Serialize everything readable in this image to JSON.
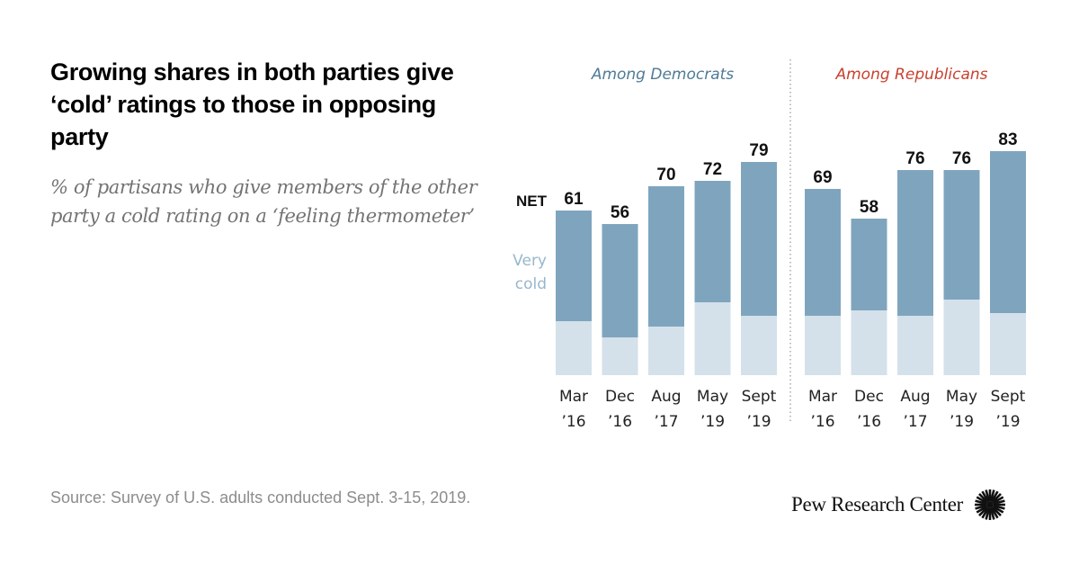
{
  "title": "Growing shares in both parties give ‘cold’ ratings to those in opposing party",
  "subtitle": "% of partisans who give members of the other party a cold rating on a ‘feeling thermometer’",
  "source": "Source: Survey of U.S. adults conducted Sept. 3-15, 2019.",
  "logo": {
    "text": "Pew Research Center",
    "icon": "pew-sunburst-icon"
  },
  "colors": {
    "net_bar": "#7FA5BE",
    "very_cold_bar": "#D4E1EA",
    "democrats_title": "#4F7A96",
    "republicans_title": "#C8412E",
    "very_cold_label": "#97B7CC",
    "divider": "#AAAAAA"
  },
  "chart_data": {
    "type": "bar",
    "title": "Growing shares in both parties give ‘cold’ ratings to those in opposing party",
    "subtitle": "% of partisans who give members of the other party a cold rating on a ‘feeling thermometer’",
    "xlabel": "",
    "ylabel": "",
    "ylim": [
      0,
      100
    ],
    "grid": false,
    "legend": {
      "labels": [
        "NET",
        "Very cold"
      ],
      "placement": "left"
    },
    "categories": [
      [
        "Mar",
        "’16"
      ],
      [
        "Dec",
        "’16"
      ],
      [
        "Aug",
        "’17"
      ],
      [
        "May",
        "’19"
      ],
      [
        "Sept",
        "’19"
      ]
    ],
    "panels": [
      {
        "name": "Among Democrats",
        "series": [
          {
            "name": "NET",
            "values": [
              61,
              56,
              70,
              72,
              79
            ]
          },
          {
            "name": "Very cold",
            "values": [
              20,
              14,
              18,
              27,
              22
            ]
          }
        ]
      },
      {
        "name": "Among Republicans",
        "series": [
          {
            "name": "NET",
            "values": [
              69,
              58,
              76,
              76,
              83
            ]
          },
          {
            "name": "Very cold",
            "values": [
              22,
              24,
              22,
              28,
              23
            ]
          }
        ]
      }
    ]
  }
}
